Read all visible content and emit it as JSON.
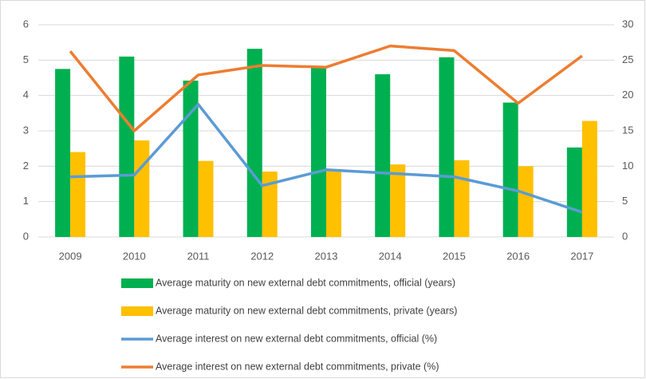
{
  "chart_data": {
    "type": "bar",
    "categories": [
      "2009",
      "2010",
      "2011",
      "2012",
      "2013",
      "2014",
      "2015",
      "2016",
      "2017"
    ],
    "series": [
      {
        "name": "Average maturity on new external debt commitments, official (years)",
        "type": "bar",
        "axis": "y2",
        "color": "#00b050",
        "values": [
          23.75,
          25.5,
          22.1,
          26.6,
          24,
          23,
          25.4,
          19,
          12.65
        ]
      },
      {
        "name": "Average maturity on new external debt commitments, private (years)",
        "type": "bar",
        "axis": "y2",
        "color": "#ffc000",
        "values": [
          12,
          13.65,
          10.75,
          9.25,
          9.6,
          10.25,
          10.85,
          10,
          16.4
        ]
      },
      {
        "name": "Average interest on new external debt commitments, official (%)",
        "type": "line",
        "color": "#5b9bd5",
        "values": [
          1.7,
          1.75,
          3.75,
          1.45,
          1.9,
          1.8,
          1.7,
          1.3,
          0.7
        ]
      },
      {
        "name": "Average interest on new external debt commitments, private (%)",
        "type": "line",
        "color": "#ed7d31",
        "values": [
          5.25,
          3.0,
          4.58,
          4.85,
          4.8,
          5.4,
          5.27,
          3.78,
          5.12
        ]
      }
    ],
    "ylim": [
      0,
      6
    ],
    "yticks": [
      0,
      1,
      2,
      3,
      4,
      5,
      6
    ],
    "y2lim": [
      0,
      30
    ],
    "y2ticks": [
      0,
      5,
      10,
      15,
      20,
      25,
      30
    ],
    "grid": true
  }
}
